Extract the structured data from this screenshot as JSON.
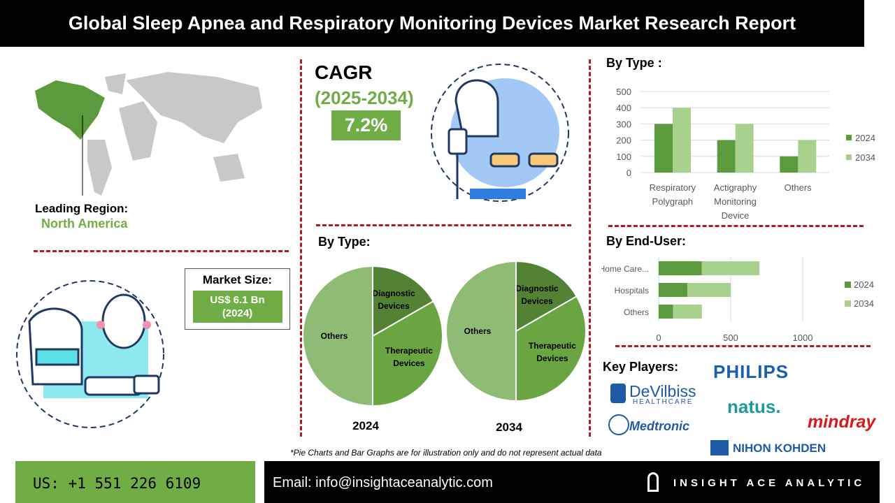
{
  "title": "Global Sleep Apnea and Respiratory Monitoring Devices Market Research Report",
  "region": {
    "label": "Leading Region:",
    "value": "North America"
  },
  "cagr": {
    "label": "CAGR",
    "period": "(2025-2034)",
    "value": "7.2%"
  },
  "market_size": {
    "label": "Market Size:",
    "value_line1": "US$ 6.1 Bn",
    "value_line2": "(2024)"
  },
  "key_players": {
    "label": "Key Players:",
    "logos": [
      "PHILIPS",
      "DeVilbiss",
      "HEALTHCARE",
      "natus.",
      "Medtronic",
      "mindray",
      "NIHON KOHDEN"
    ]
  },
  "footnote": "*Pie Charts and Bar Graphs are for illustration only and do not represent actual data",
  "footer": {
    "phone": "US: +1 551 226 6109",
    "email": "Email: info@insightaceanalytic.com",
    "brand": "INSIGHT ACE ANALYTIC"
  },
  "colors": {
    "dark": "#5b9a3d",
    "light": "#a9d18e",
    "pie_diag": "#548235",
    "pie_ther": "#6aa542",
    "pie_oth": "#8fbc74"
  },
  "chart_data": [
    {
      "type": "bar",
      "title": "By Type :",
      "categories": [
        "Respiratory Polygraph",
        "Actigraphy Monitoring Device",
        "Others"
      ],
      "cat_lines": [
        [
          "Respiratory",
          "Polygraph"
        ],
        [
          "Actigraphy",
          "Monitoring",
          "Device"
        ],
        [
          "Others"
        ]
      ],
      "series": [
        {
          "name": "2024",
          "values": [
            300,
            200,
            100
          ]
        },
        {
          "name": "2034",
          "values": [
            400,
            300,
            200
          ]
        }
      ],
      "ylim": [
        0,
        500
      ],
      "yticks": [
        "0",
        "100",
        "200",
        "300",
        "400",
        "500"
      ],
      "legend": "right"
    },
    {
      "type": "bar",
      "orientation": "horizontal",
      "stacked": true,
      "title": "By End-User:",
      "categories": [
        "Home Care...",
        "Hospitals",
        "Others"
      ],
      "series": [
        {
          "name": "2024",
          "values": [
            300,
            200,
            100
          ]
        },
        {
          "name": "2034",
          "values": [
            400,
            300,
            200
          ]
        }
      ],
      "xlim": [
        0,
        1000
      ],
      "xticks": [
        "0",
        "500",
        "1000"
      ],
      "legend": "right"
    },
    {
      "type": "pie",
      "title": "By Type:",
      "pies": [
        {
          "year": "2024",
          "slices": [
            {
              "label": "Diagnostic Devices",
              "l1": "Diagnostic",
              "l2": "Devices",
              "value": 16.7
            },
            {
              "label": "Therapeutic Devices",
              "l1": "Therapeutic",
              "l2": "Devices",
              "value": 33.3
            },
            {
              "label": "Others",
              "l1": "Others",
              "l2": "",
              "value": 50
            }
          ]
        },
        {
          "year": "2034",
          "slices": [
            {
              "label": "Diagnostic Devices",
              "l1": "Diagnostic",
              "l2": "Devices",
              "value": 16.7
            },
            {
              "label": "Therapeutic Devices",
              "l1": "Therapeutic",
              "l2": "Devices",
              "value": 33.3
            },
            {
              "label": "Others",
              "l1": "Others",
              "l2": "",
              "value": 50
            }
          ]
        }
      ]
    }
  ]
}
